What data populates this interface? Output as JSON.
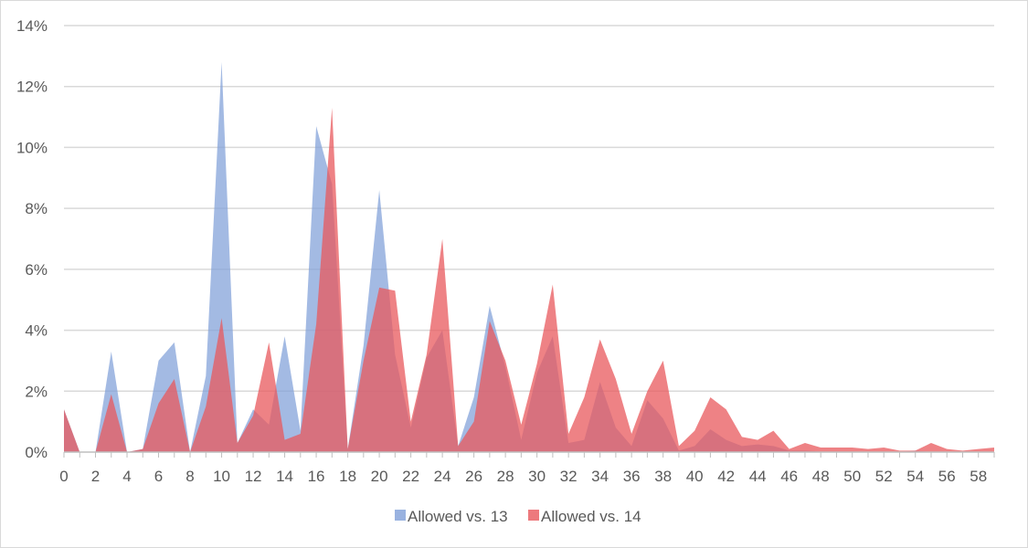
{
  "chart_data": {
    "type": "area",
    "title": "",
    "xlabel": "",
    "ylabel": "",
    "x": [
      0,
      1,
      2,
      3,
      4,
      5,
      6,
      7,
      8,
      9,
      10,
      11,
      12,
      13,
      14,
      15,
      16,
      17,
      18,
      19,
      20,
      21,
      22,
      23,
      24,
      25,
      26,
      27,
      28,
      29,
      30,
      31,
      32,
      33,
      34,
      35,
      36,
      37,
      38,
      39,
      40,
      41,
      42,
      43,
      44,
      45,
      46,
      47,
      48,
      49,
      50,
      51,
      52,
      53,
      54,
      55,
      56,
      57,
      58,
      59
    ],
    "x_tick_labels": [
      "0",
      "2",
      "4",
      "6",
      "8",
      "10",
      "12",
      "14",
      "16",
      "18",
      "20",
      "22",
      "24",
      "26",
      "28",
      "30",
      "32",
      "34",
      "36",
      "38",
      "40",
      "42",
      "44",
      "46",
      "48",
      "50",
      "52",
      "54",
      "56",
      "58"
    ],
    "y_tick_labels": [
      "0%",
      "2%",
      "4%",
      "6%",
      "8%",
      "10%",
      "12%",
      "14%"
    ],
    "ylim": [
      0,
      14
    ],
    "grid": true,
    "legend_position": "bottom",
    "series": [
      {
        "name": "Allowed vs. 13",
        "color": "#7f9fd8",
        "values": [
          1.4,
          0,
          0,
          3.3,
          0,
          0.1,
          3.0,
          3.6,
          0,
          2.5,
          12.8,
          0.3,
          1.4,
          0.9,
          3.8,
          0.7,
          10.7,
          8.8,
          0.1,
          3.5,
          8.6,
          3.2,
          0.8,
          3.1,
          4.0,
          0.2,
          1.8,
          4.8,
          2.8,
          0.4,
          2.6,
          3.8,
          0.3,
          0.4,
          2.3,
          0.8,
          0.2,
          1.7,
          1.1,
          0.05,
          0.2,
          0.75,
          0.4,
          0.2,
          0.25,
          0.2,
          0.05,
          0.05,
          0.02,
          0.02,
          0.02,
          0,
          0.02,
          0,
          0.05,
          0,
          0,
          0,
          0,
          0
        ]
      },
      {
        "name": "Allowed vs. 14",
        "color": "#e8585c",
        "values": [
          1.4,
          0,
          0,
          1.9,
          0,
          0.1,
          1.6,
          2.4,
          0,
          1.5,
          4.4,
          0.3,
          1.2,
          3.6,
          0.4,
          0.6,
          4.2,
          11.3,
          0.1,
          3.0,
          5.4,
          5.3,
          1.0,
          3.2,
          7.0,
          0.2,
          1.0,
          4.3,
          3.0,
          0.9,
          2.9,
          5.5,
          0.6,
          1.8,
          3.7,
          2.4,
          0.6,
          2.0,
          3.0,
          0.2,
          0.7,
          1.8,
          1.4,
          0.5,
          0.4,
          0.7,
          0.1,
          0.3,
          0.15,
          0.15,
          0.15,
          0.1,
          0.15,
          0.05,
          0.05,
          0.3,
          0.1,
          0.05,
          0.1,
          0.15
        ]
      }
    ]
  }
}
